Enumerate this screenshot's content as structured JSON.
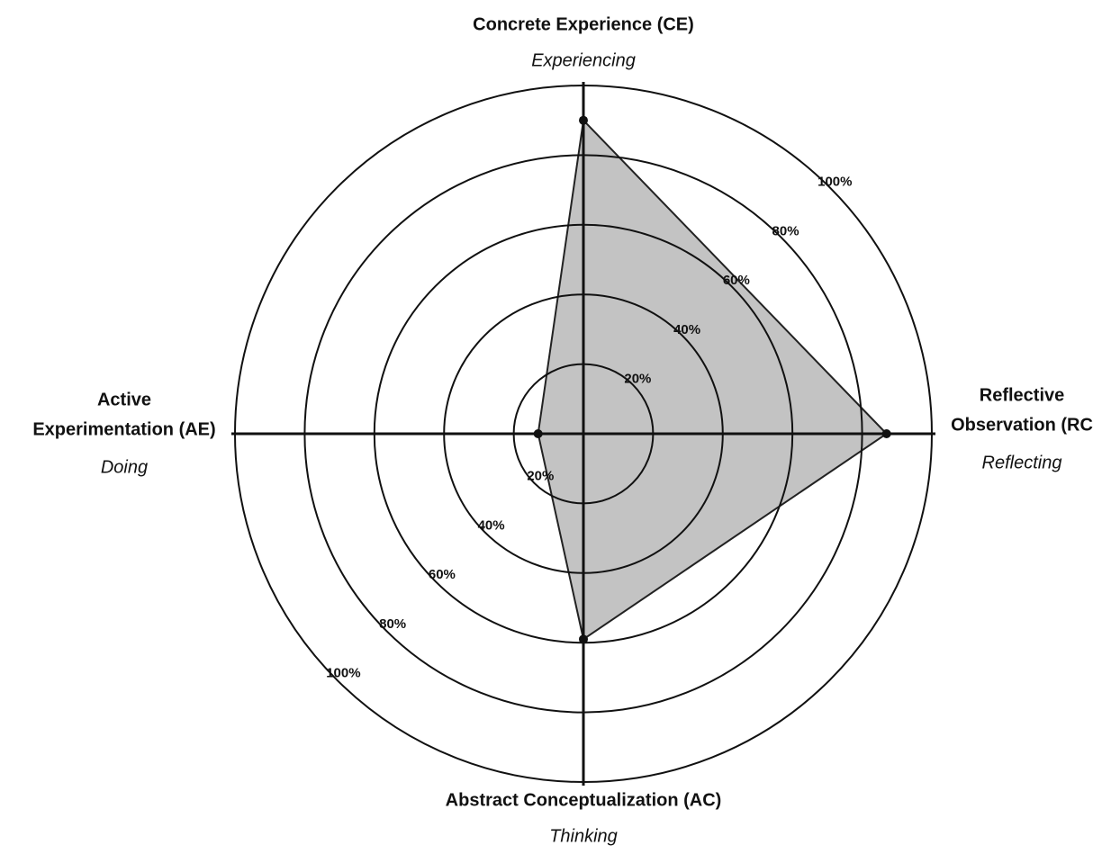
{
  "chart_data": {
    "type": "radar",
    "axes": [
      {
        "name_lines": [
          "Concrete Experience (CE)"
        ],
        "sublabel": "Experiencing"
      },
      {
        "name_lines": [
          "Reflective",
          "Observation (RC"
        ],
        "sublabel": "Reflecting"
      },
      {
        "name_lines": [
          "Abstract Conceptualization (AC)"
        ],
        "sublabel": "Thinking"
      },
      {
        "name_lines": [
          "Active",
          "Experimentation (AE)"
        ],
        "sublabel": "Doing"
      }
    ],
    "values": [
      90,
      87,
      59,
      13
    ],
    "rlim": [
      0,
      100
    ],
    "rticks": [
      {
        "value": 20,
        "label": "20%"
      },
      {
        "value": 40,
        "label": "40%"
      },
      {
        "value": 60,
        "label": "60%"
      },
      {
        "value": 80,
        "label": "80%"
      },
      {
        "value": 100,
        "label": "100%"
      }
    ],
    "color": "#b8b8b8",
    "grid": true
  }
}
